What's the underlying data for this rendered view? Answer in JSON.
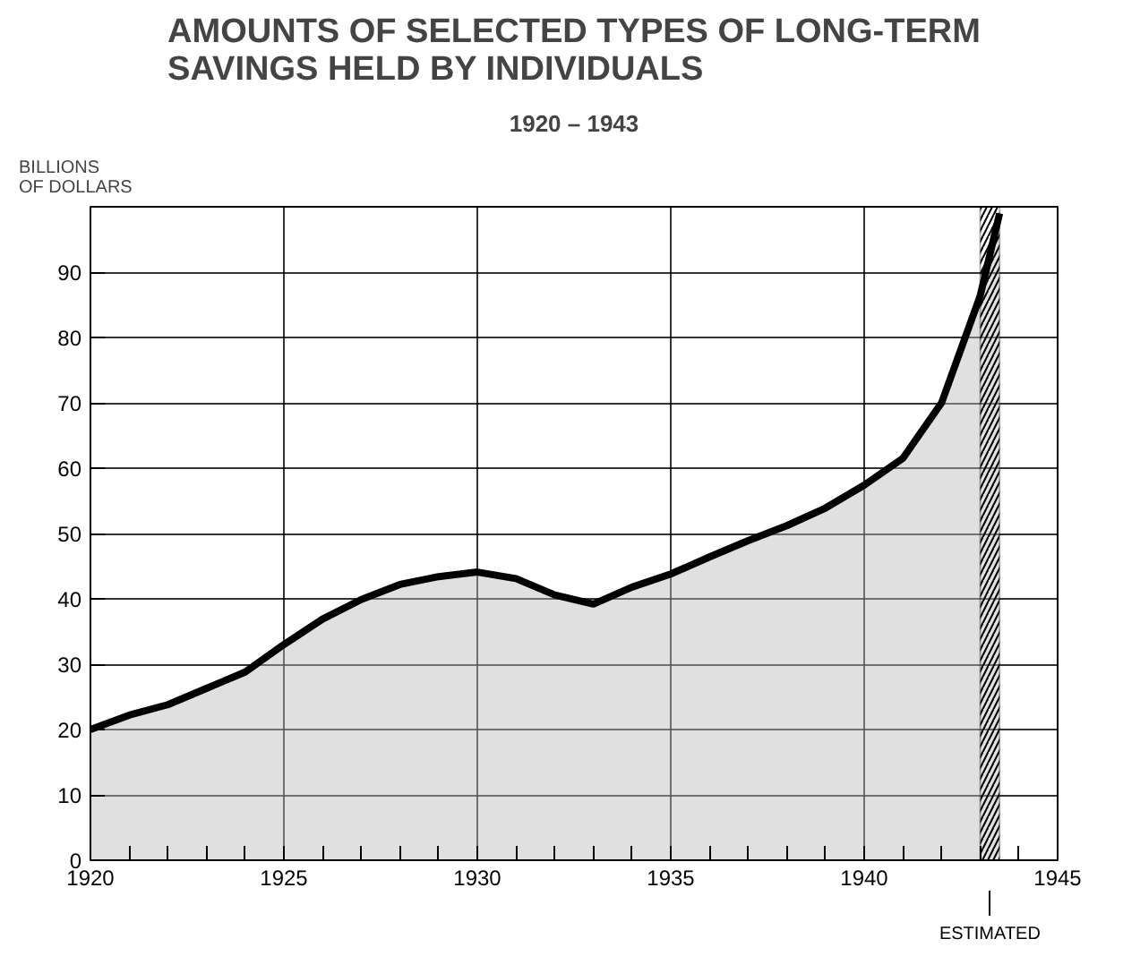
{
  "chart_data": {
    "type": "area",
    "title": "AMOUNTS OF SELECTED TYPES OF LONG-TERM\nSAVINGS HELD BY INDIVIDUALS",
    "subtitle": "1920 – 1943",
    "ylabel": "BILLIONS\nOF DOLLARS",
    "x": [
      1920,
      1921,
      1922,
      1923,
      1924,
      1925,
      1926,
      1927,
      1928,
      1929,
      1930,
      1931,
      1932,
      1933,
      1934,
      1935,
      1936,
      1937,
      1938,
      1939,
      1940,
      1941,
      1942,
      1943,
      1943.5
    ],
    "series": [
      {
        "color": "#000000",
        "values": [
          20,
          22.2,
          23.8,
          26.3,
          28.8,
          33,
          36.9,
          39.9,
          42.2,
          43.4,
          44.1,
          43.1,
          40.6,
          39.2,
          41.8,
          43.8,
          46.4,
          48.9,
          51.2,
          53.9,
          57.4,
          61.5,
          70,
          86.4,
          99
        ]
      }
    ],
    "xlim": [
      1920,
      1945
    ],
    "ylim": [
      0,
      100
    ],
    "xticks": [
      1920,
      {
        "value": 1921,
        "label": null
      },
      {
        "value": 1922,
        "label": null
      },
      {
        "value": 1923,
        "label": null
      },
      {
        "value": 1924,
        "label": null
      },
      1925,
      {
        "value": 1926,
        "label": null
      },
      {
        "value": 1927,
        "label": null
      },
      {
        "value": 1928,
        "label": null
      },
      {
        "value": 1929,
        "label": null
      },
      1930,
      {
        "value": 1931,
        "label": null
      },
      {
        "value": 1932,
        "label": null
      },
      {
        "value": 1933,
        "label": null
      },
      {
        "value": 1934,
        "label": null
      },
      1935,
      {
        "value": 1936,
        "label": null
      },
      {
        "value": 1937,
        "label": null
      },
      {
        "value": 1938,
        "label": null
      },
      {
        "value": 1939,
        "label": null
      },
      1940,
      {
        "value": 1941,
        "label": null
      },
      {
        "value": 1942,
        "label": null
      },
      {
        "value": 1943,
        "label": null
      },
      {
        "value": 1944,
        "label": null
      },
      1945
    ],
    "yticks": [
      0,
      10,
      20,
      30,
      40,
      50,
      60,
      70,
      80,
      90
    ],
    "bands": [
      {
        "axis": "x",
        "from": 1943,
        "to": 1943.5,
        "label": "ESTIMATED",
        "color": "#000000"
      }
    ],
    "grid": true
  }
}
